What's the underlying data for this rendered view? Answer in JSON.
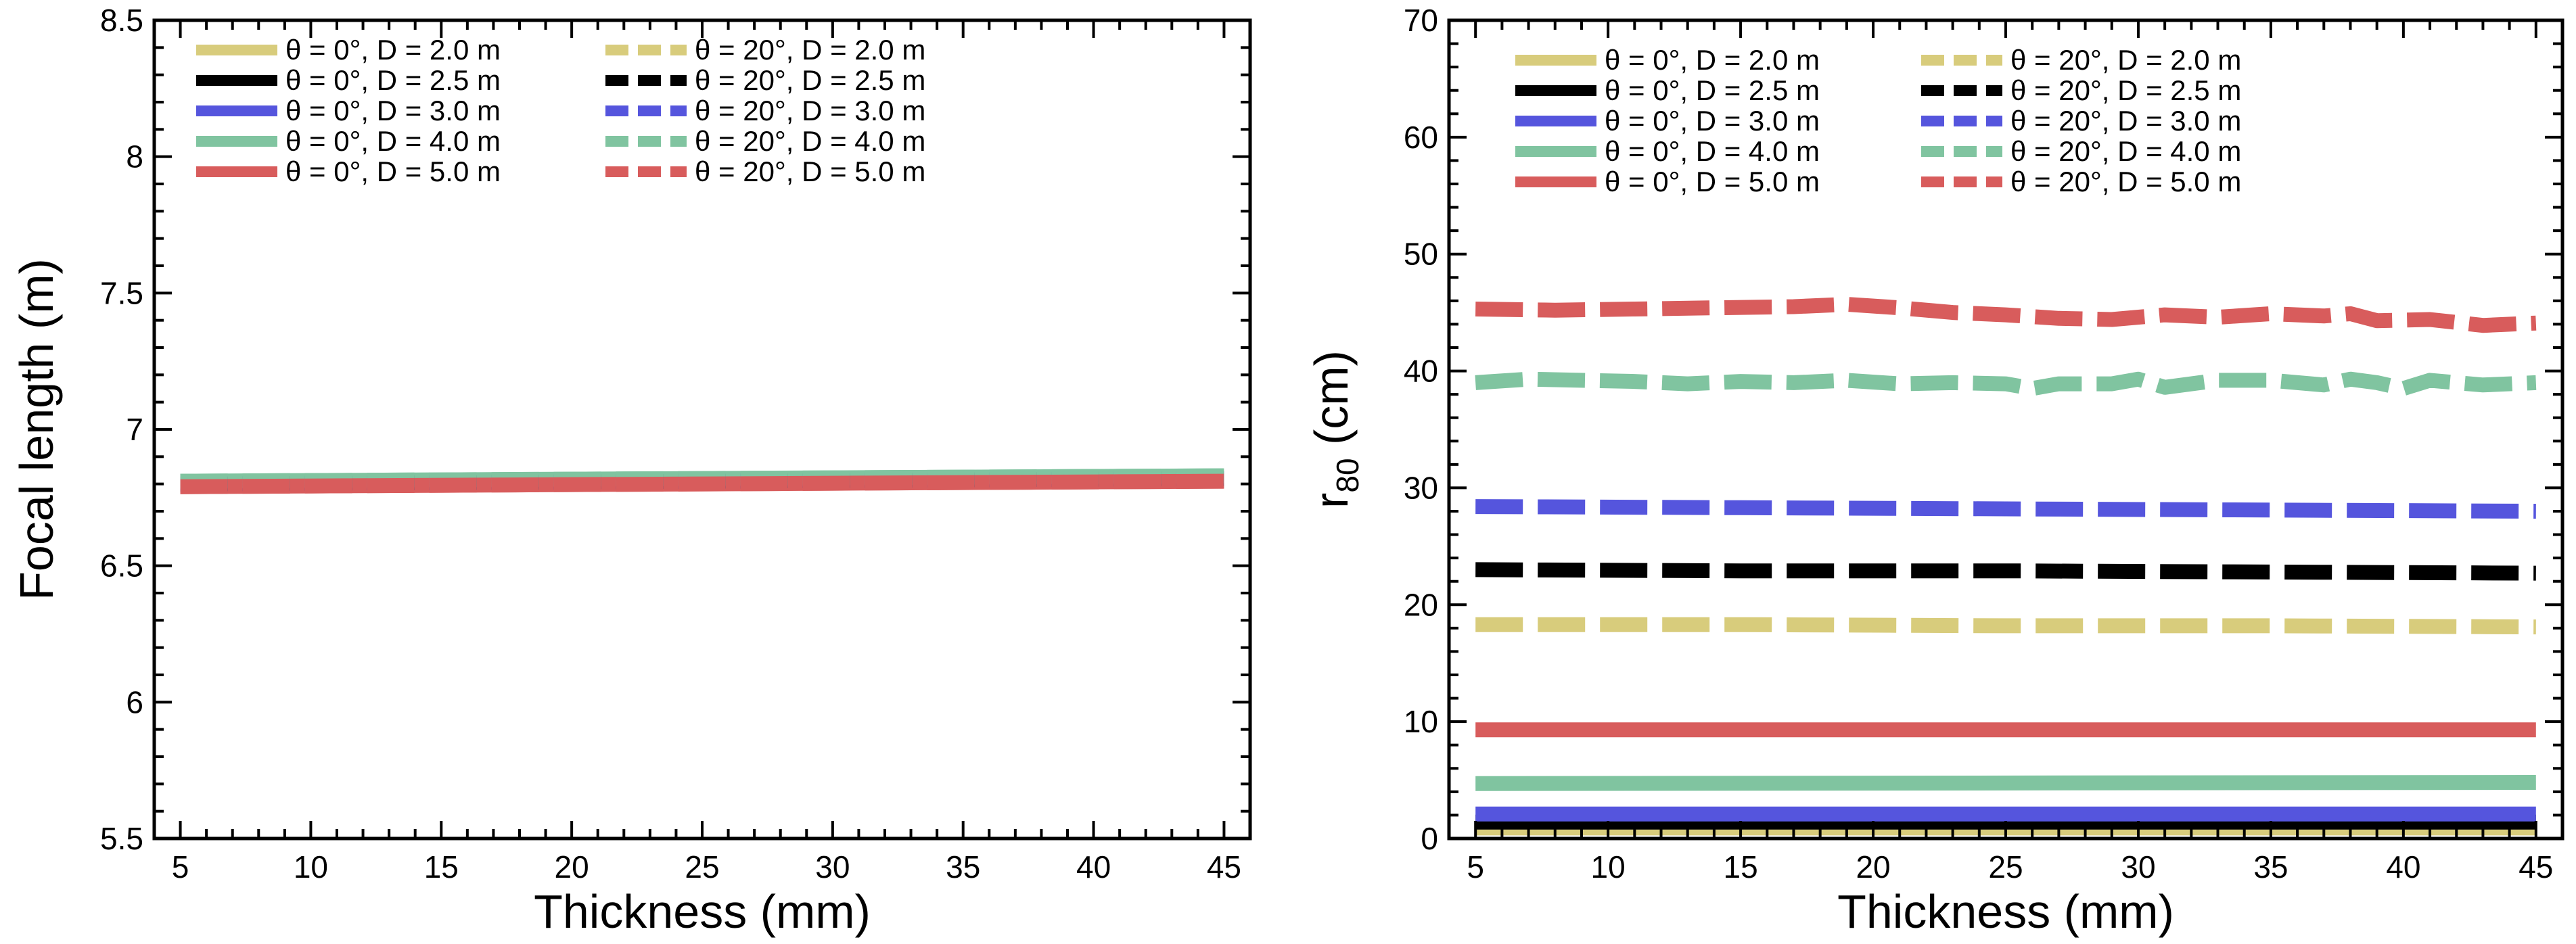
{
  "colors": {
    "D2.0": "#d8cc7c",
    "D2.5": "#000000",
    "D3.0": "#5555dd",
    "D4.0": "#80c4a0",
    "D5.0": "#d85c5c"
  },
  "chart_data": [
    {
      "type": "line",
      "xlabel": "Thickness (mm)",
      "ylabel": "Focal length (m)",
      "xlim": [
        4,
        46
      ],
      "ylim": [
        5.5,
        8.5
      ],
      "xticks": [
        5,
        10,
        15,
        20,
        25,
        30,
        35,
        40,
        45
      ],
      "yticks": [
        5.5,
        6,
        6.5,
        7,
        7.5,
        8,
        8.5
      ],
      "legend_position": "top",
      "grid": false,
      "series": [
        {
          "name": "θ = 0°, D = 2.0 m",
          "color_key": "D2.0",
          "dash": false,
          "x": [
            5,
            45
          ],
          "y": [
            6.8,
            6.82
          ]
        },
        {
          "name": "θ = 0°, D = 2.5 m",
          "color_key": "D2.5",
          "dash": false,
          "x": [
            5,
            45
          ],
          "y": [
            6.8,
            6.82
          ]
        },
        {
          "name": "θ = 0°, D = 3.0 m",
          "color_key": "D3.0",
          "dash": false,
          "x": [
            5,
            45
          ],
          "y": [
            6.8,
            6.82
          ]
        },
        {
          "name": "θ = 0°, D = 4.0 m",
          "color_key": "D4.0",
          "dash": false,
          "x": [
            5,
            45
          ],
          "y": [
            6.81,
            6.83
          ]
        },
        {
          "name": "θ = 0°, D = 5.0 m",
          "color_key": "D5.0",
          "dash": false,
          "x": [
            5,
            45
          ],
          "y": [
            6.79,
            6.81
          ]
        },
        {
          "name": "θ = 20°, D = 2.0 m",
          "color_key": "D2.0",
          "dash": true,
          "x": [
            5,
            45
          ],
          "y": [
            6.8,
            6.82
          ]
        },
        {
          "name": "θ = 20°, D = 2.5 m",
          "color_key": "D2.5",
          "dash": true,
          "x": [
            5,
            45
          ],
          "y": [
            6.8,
            6.82
          ]
        },
        {
          "name": "θ = 20°, D = 3.0 m",
          "color_key": "D3.0",
          "dash": true,
          "x": [
            5,
            45
          ],
          "y": [
            6.8,
            6.82
          ]
        },
        {
          "name": "θ = 20°, D = 4.0 m",
          "color_key": "D4.0",
          "dash": true,
          "x": [
            5,
            45
          ],
          "y": [
            6.81,
            6.83
          ]
        },
        {
          "name": "θ = 20°, D = 5.0 m",
          "color_key": "D5.0",
          "dash": true,
          "x": [
            5,
            45
          ],
          "y": [
            6.79,
            6.81
          ]
        }
      ]
    },
    {
      "type": "line",
      "xlabel": "Thickness (mm)",
      "ylabel_main": "r",
      "ylabel_sub": "80",
      "ylabel_unit": " (cm)",
      "xlim": [
        4,
        46
      ],
      "ylim": [
        0,
        70
      ],
      "xticks": [
        5,
        10,
        15,
        20,
        25,
        30,
        35,
        40,
        45
      ],
      "yticks": [
        0,
        10,
        20,
        30,
        40,
        50,
        60,
        70
      ],
      "legend_position": "top",
      "grid": false,
      "series": [
        {
          "name": "θ = 0°, D = 2.0 m",
          "color_key": "D2.0",
          "dash": false,
          "x": [
            5,
            45
          ],
          "y": [
            0.9,
            0.9
          ]
        },
        {
          "name": "θ = 0°, D = 2.5 m",
          "color_key": "D2.5",
          "dash": false,
          "x": [
            5,
            45
          ],
          "y": [
            1.4,
            1.4
          ]
        },
        {
          "name": "θ = 0°, D = 3.0 m",
          "color_key": "D3.0",
          "dash": false,
          "x": [
            5,
            45
          ],
          "y": [
            2.1,
            2.1
          ]
        },
        {
          "name": "θ = 0°, D = 4.0 m",
          "color_key": "D4.0",
          "dash": false,
          "x": [
            5,
            45
          ],
          "y": [
            4.7,
            4.8
          ]
        },
        {
          "name": "θ = 0°, D = 5.0 m",
          "color_key": "D5.0",
          "dash": false,
          "x": [
            5,
            45
          ],
          "y": [
            9.3,
            9.3
          ]
        },
        {
          "name": "θ = 20°, D = 2.0 m",
          "color_key": "D2.0",
          "dash": true,
          "x": [
            5,
            15,
            25,
            35,
            45
          ],
          "y": [
            18.3,
            18.3,
            18.2,
            18.2,
            18.1
          ]
        },
        {
          "name": "θ = 20°, D = 2.5 m",
          "color_key": "D2.5",
          "dash": true,
          "x": [
            5,
            15,
            25,
            35,
            45
          ],
          "y": [
            23.0,
            22.9,
            22.9,
            22.8,
            22.7
          ]
        },
        {
          "name": "θ = 20°, D = 3.0 m",
          "color_key": "D3.0",
          "dash": true,
          "x": [
            5,
            15,
            25,
            35,
            45
          ],
          "y": [
            28.4,
            28.3,
            28.2,
            28.1,
            28.0
          ]
        },
        {
          "name": "θ = 20°, D = 4.0 m",
          "color_key": "D4.0",
          "dash": true,
          "x": [
            5,
            7,
            9,
            11,
            13,
            15,
            17,
            19,
            21,
            23,
            25,
            26,
            27,
            29,
            30,
            31,
            33,
            35,
            37,
            38,
            39,
            40,
            41,
            42,
            43,
            45
          ],
          "y": [
            39.0,
            39.3,
            39.2,
            39.1,
            38.9,
            39.1,
            39.0,
            39.2,
            38.9,
            39.0,
            38.9,
            38.5,
            38.9,
            38.9,
            39.3,
            38.6,
            39.2,
            39.2,
            38.8,
            39.3,
            39.0,
            38.5,
            39.2,
            39.0,
            38.8,
            39.0
          ]
        },
        {
          "name": "θ = 20°, D = 5.0 m",
          "color_key": "D5.0",
          "dash": true,
          "x": [
            5,
            8,
            11,
            14,
            17,
            19,
            21,
            23,
            25,
            27,
            29,
            31,
            33,
            35,
            37,
            38,
            39,
            41,
            43,
            45
          ],
          "y": [
            45.3,
            45.2,
            45.3,
            45.4,
            45.5,
            45.7,
            45.4,
            45.0,
            44.8,
            44.5,
            44.4,
            44.8,
            44.6,
            44.9,
            44.7,
            44.9,
            44.3,
            44.4,
            43.9,
            44.1
          ]
        }
      ]
    }
  ]
}
